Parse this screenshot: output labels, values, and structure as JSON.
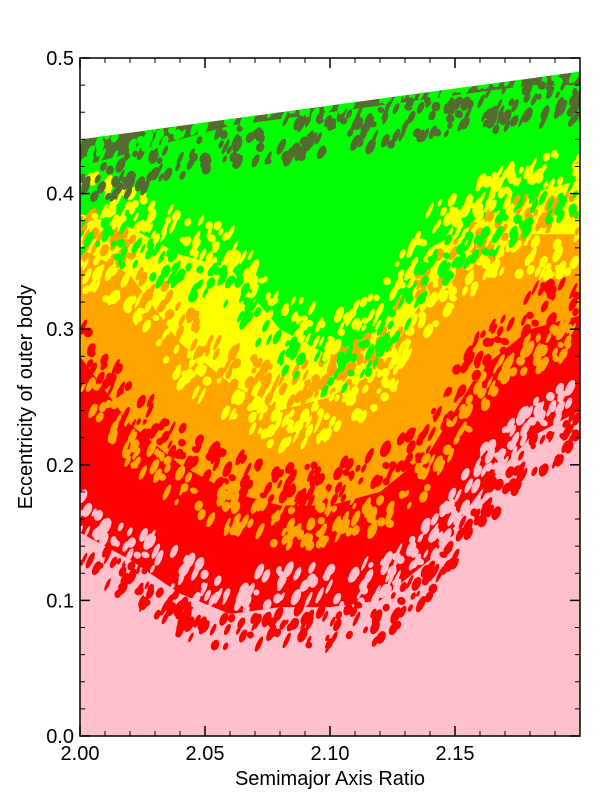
{
  "chart_data": {
    "type": "heatmap",
    "title": "",
    "xlabel": "Semimajor Axis Ratio",
    "ylabel": "Eccentricity of outer body",
    "xlim": [
      2.0,
      2.2
    ],
    "ylim": [
      0.0,
      0.5
    ],
    "x_ticks": [
      "2.00",
      "2.05",
      "2.10",
      "2.15"
    ],
    "x_tick_values": [
      2.0,
      2.05,
      2.1,
      2.15
    ],
    "y_ticks": [
      "0.0",
      "0.1",
      "0.2",
      "0.3",
      "0.4",
      "0.5"
    ],
    "y_tick_values": [
      0.0,
      0.1,
      0.2,
      0.3,
      0.4,
      0.5
    ],
    "grid": false,
    "legend": "none",
    "colors": {
      "pink": "#ffc0cb",
      "red": "#ff0000",
      "orange": "#ffa500",
      "yellow": "#ffff00",
      "green": "#00ff00",
      "darkgreen": "#556b2f",
      "background": "#ffffff"
    },
    "x_samples": [
      2.0,
      2.02,
      2.04,
      2.06,
      2.08,
      2.1,
      2.12,
      2.14,
      2.16,
      2.18,
      2.2
    ],
    "region_boundaries": [
      {
        "region": "pink",
        "upper_e": [
          0.15,
          0.13,
          0.105,
          0.09,
          0.095,
          0.095,
          0.1,
          0.13,
          0.18,
          0.22,
          0.24
        ]
      },
      {
        "region": "red",
        "upper_e": [
          0.28,
          0.23,
          0.2,
          0.18,
          0.17,
          0.17,
          0.18,
          0.21,
          0.27,
          0.3,
          0.31
        ]
      },
      {
        "region": "orange",
        "upper_e": [
          0.36,
          0.34,
          0.29,
          0.26,
          0.24,
          0.25,
          0.27,
          0.33,
          0.36,
          0.37,
          0.37
        ]
      },
      {
        "region": "yellow",
        "upper_e": [
          0.385,
          0.375,
          0.355,
          0.345,
          0.3,
          0.28,
          0.3,
          0.36,
          0.38,
          0.4,
          0.41
        ]
      },
      {
        "region": "green",
        "upper_e": [
          0.42,
          0.43,
          0.44,
          0.45,
          0.455,
          0.46,
          0.465,
          0.47,
          0.475,
          0.48,
          0.48
        ]
      },
      {
        "region": "darkgreen",
        "upper_e": [
          0.44,
          0.445,
          0.45,
          0.455,
          0.46,
          0.465,
          0.47,
          0.475,
          0.48,
          0.485,
          0.49
        ]
      }
    ]
  }
}
